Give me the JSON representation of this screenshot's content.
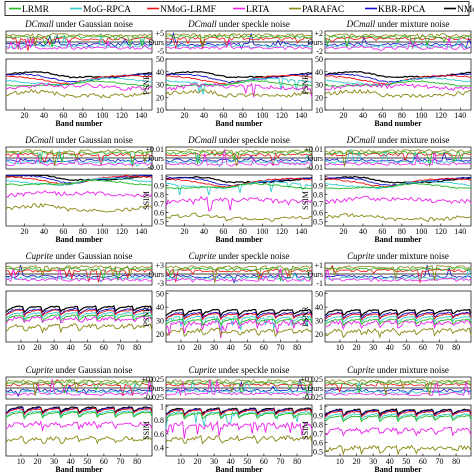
{
  "legend": {
    "items": [
      {
        "name": "LRMR",
        "color": "#22bb22"
      },
      {
        "name": "MoG-RPCA",
        "color": "#33cccc"
      },
      {
        "name": "NMoG-LRMF",
        "color": "#ee1111"
      },
      {
        "name": "LRTA",
        "color": "#ee22ee"
      },
      {
        "name": "PARAFAC",
        "color": "#888811"
      },
      {
        "name": "KBR-RPCA",
        "color": "#1111cc"
      },
      {
        "name": "NMoG-Tucker",
        "color": "#000000"
      }
    ]
  },
  "chart_data": {
    "type": "line",
    "x_label": "Band number",
    "panels": [
      {
        "row": 0,
        "col": 0,
        "title_italic": "DCmall",
        "title_rest": " under Gaussian noise",
        "metric": "PSNR",
        "diff_ticks": [],
        "xticks": [
          "20",
          "40",
          "60",
          "80",
          "100",
          "120",
          "140"
        ],
        "xlim": [
          1,
          151
        ],
        "yticks_main": [],
        "ylim_main": [
          10,
          50
        ],
        "show_xlabel": true
      },
      {
        "row": 0,
        "col": 1,
        "title_italic": "DCmall",
        "title_rest": " under speckle noise",
        "metric": "PSNR",
        "diff_ticks": [
          "+5",
          "Ours",
          "-5"
        ],
        "xticks": [
          "20",
          "40",
          "60",
          "80",
          "100",
          "120",
          "140"
        ],
        "xlim": [
          1,
          151
        ],
        "yticks_main": [
          "50",
          "40",
          "30",
          "20",
          "10"
        ],
        "ylim_main": [
          10,
          50
        ],
        "show_ylabel": true,
        "show_xlabel": true
      },
      {
        "row": 0,
        "col": 2,
        "title_italic": "DCmall",
        "title_rest": " under mixture noise",
        "metric": "PSNR",
        "diff_ticks": [
          "+2",
          "Ours",
          "-2"
        ],
        "xticks": [
          "20",
          "40",
          "60",
          "80",
          "100",
          "120",
          "140"
        ],
        "xlim": [
          1,
          151
        ],
        "yticks_main": [
          "50",
          "40",
          "30",
          "20",
          "10"
        ],
        "ylim_main": [
          10,
          50
        ],
        "show_ylabel": true,
        "show_xlabel": true
      },
      {
        "row": 1,
        "col": 0,
        "title_italic": "DCmall",
        "title_rest": " under Gaussian noise",
        "metric": "SSIM",
        "diff_ticks": [],
        "xticks": [
          "20",
          "40",
          "60",
          "80",
          "100",
          "120",
          "140"
        ],
        "xlim": [
          1,
          151
        ],
        "yticks_main": [],
        "ylim_main": [
          0.3,
          1
        ],
        "show_xlabel": true
      },
      {
        "row": 1,
        "col": 1,
        "title_italic": "DCmall",
        "title_rest": " under speckle noise",
        "metric": "SSIM",
        "diff_ticks": [
          "+0.01",
          "Ours",
          "-0.01"
        ],
        "xticks": [
          "20",
          "40",
          "60",
          "80",
          "100",
          "120",
          "140"
        ],
        "xlim": [
          1,
          151
        ],
        "yticks_main": [
          "1",
          "0.9",
          "0.8",
          "0.7",
          "0.6",
          "0.5"
        ],
        "ylim_main": [
          0.45,
          1.02
        ],
        "show_ylabel": true,
        "show_xlabel": true
      },
      {
        "row": 1,
        "col": 2,
        "title_italic": "DCmall",
        "title_rest": " under mixture noise",
        "metric": "SSIM",
        "diff_ticks": [
          "+0.01",
          "Ours",
          "-0.01"
        ],
        "xticks": [
          "20",
          "40",
          "60",
          "80",
          "100",
          "120",
          "140"
        ],
        "xlim": [
          1,
          151
        ],
        "yticks_main": [
          "1",
          "0.9",
          "0.8",
          "0.7",
          "0.6",
          "0.5"
        ],
        "ylim_main": [
          0.45,
          1.02
        ],
        "show_ylabel": true,
        "show_xlabel": true
      },
      {
        "row": 2,
        "col": 0,
        "title_italic": "Cuprite",
        "title_rest": " under Gaussian noise",
        "metric": "PSNR",
        "diff_ticks": [],
        "xticks": [
          "10",
          "20",
          "30",
          "40",
          "50",
          "60",
          "70",
          "80"
        ],
        "xlim": [
          1,
          89
        ],
        "yticks_main": [],
        "ylim_main": [
          10,
          50
        ],
        "show_xlabel": false
      },
      {
        "row": 2,
        "col": 1,
        "title_italic": "Cuprite",
        "title_rest": " under speckle noise",
        "metric": "PSNR",
        "diff_ticks": [
          "+3",
          "Ours",
          "-3"
        ],
        "xticks": [
          "10",
          "20",
          "30",
          "40",
          "50",
          "60",
          "70",
          "80"
        ],
        "xlim": [
          1,
          89
        ],
        "yticks_main": [
          "50",
          "40",
          "30",
          "20"
        ],
        "ylim_main": [
          14,
          52
        ],
        "show_ylabel": true,
        "show_xlabel": false
      },
      {
        "row": 2,
        "col": 2,
        "title_italic": "Cuprite",
        "title_rest": " under mixture noise",
        "metric": "PSNR",
        "diff_ticks": [
          "+1",
          "Ours",
          "-1"
        ],
        "xticks": [
          "10",
          "20",
          "30",
          "40",
          "50",
          "60",
          "70",
          "80"
        ],
        "xlim": [
          1,
          89
        ],
        "yticks_main": [
          "50",
          "40",
          "30",
          "20"
        ],
        "ylim_main": [
          14,
          52
        ],
        "show_ylabel": true,
        "show_xlabel": false
      },
      {
        "row": 3,
        "col": 0,
        "title_italic": "Cuprite",
        "title_rest": " under Gaussian noise",
        "metric": "SSIM",
        "diff_ticks": [],
        "xticks": [
          "10",
          "20",
          "30",
          "40",
          "50",
          "60",
          "70",
          "80"
        ],
        "xlim": [
          1,
          89
        ],
        "yticks_main": [],
        "ylim_main": [
          0.3,
          1
        ],
        "show_xlabel": true
      },
      {
        "row": 3,
        "col": 1,
        "title_italic": "Cuprite",
        "title_rest": " under speckle noise",
        "metric": "SSIM",
        "diff_ticks": [
          "+0.025",
          "Ours",
          "-0.025"
        ],
        "xticks": [
          "10",
          "20",
          "30",
          "40",
          "50",
          "60",
          "70",
          "80"
        ],
        "xlim": [
          1,
          89
        ],
        "yticks_main": [
          "1",
          "0.8",
          "0.6",
          "0.4"
        ],
        "ylim_main": [
          0.28,
          1.02
        ],
        "show_ylabel": true,
        "show_xlabel": true
      },
      {
        "row": 3,
        "col": 2,
        "title_italic": "Cuprite",
        "title_rest": " under mixture noise",
        "metric": "SSIM",
        "diff_ticks": [
          "+0.025",
          "Ours",
          "-0.025"
        ],
        "xticks": [
          "10",
          "20",
          "30",
          "40",
          "50",
          "60",
          "70",
          "80"
        ],
        "xlim": [
          1,
          89
        ],
        "yticks_main": [
          "1",
          "0.9",
          "0.8",
          "0.7",
          "0.6",
          "0.5"
        ],
        "ylim_main": [
          0.45,
          1.02
        ],
        "show_ylabel": true,
        "show_xlabel": true
      }
    ],
    "series_profiles": {
      "PSNR": [
        {
          "name": "NMoG-Tucker",
          "level": 38
        },
        {
          "name": "KBR-RPCA",
          "level": 36
        },
        {
          "name": "NMoG-LRMF",
          "level": 35
        },
        {
          "name": "MoG-RPCA",
          "level": 33
        },
        {
          "name": "LRMR",
          "level": 31
        },
        {
          "name": "LRTA",
          "level": 29
        },
        {
          "name": "PARAFAC",
          "level": 23
        }
      ],
      "SSIM": [
        {
          "name": "NMoG-Tucker",
          "level": 0.97
        },
        {
          "name": "KBR-RPCA",
          "level": 0.96
        },
        {
          "name": "NMoG-LRMF",
          "level": 0.95
        },
        {
          "name": "MoG-RPCA",
          "level": 0.92
        },
        {
          "name": "LRMR",
          "level": 0.9
        },
        {
          "name": "LRTA",
          "level": 0.75
        },
        {
          "name": "PARAFAC",
          "level": 0.55
        }
      ]
    }
  }
}
